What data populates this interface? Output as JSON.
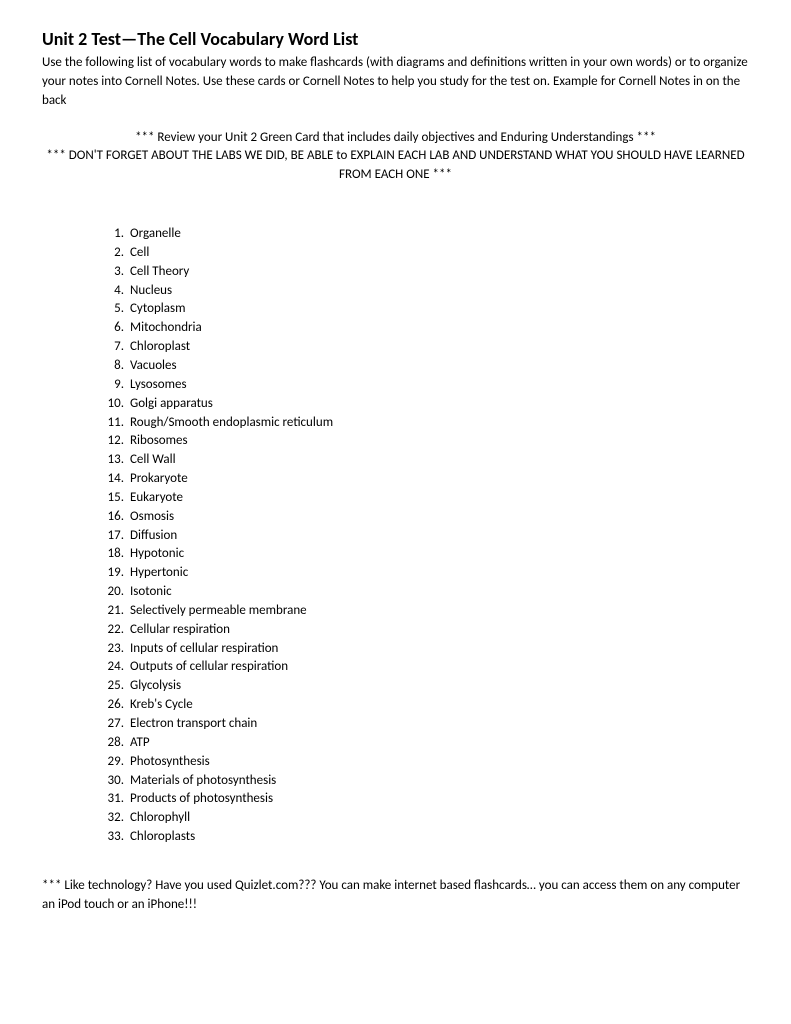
{
  "title": "Unit 2 Test—The Cell Vocabulary Word List",
  "intro": "Use the following list of vocabulary words to make flashcards (with diagrams and definitions written in your own words) or to organize your notes into Cornell Notes.  Use these cards or Cornell Notes to help you study for the test on. Example for Cornell Notes in on the back",
  "note1": "*** Review your Unit 2 Green Card that includes daily objectives and Enduring Understandings ***",
  "note2": "*** DON'T FORGET ABOUT THE LABS WE DID, BE ABLE to EXPLAIN EACH LAB AND UNDERSTAND WHAT YOU SHOULD HAVE LEARNED FROM EACH ONE ***",
  "vocab": [
    "Organelle",
    "Cell",
    "Cell Theory",
    "Nucleus",
    "Cytoplasm",
    "Mitochondria",
    "Chloroplast",
    "Vacuoles",
    "Lysosomes",
    "Golgi apparatus",
    "Rough/Smooth endoplasmic reticulum",
    "Ribosomes",
    "Cell Wall",
    "Prokaryote",
    "Eukaryote",
    "Osmosis",
    "Diffusion",
    "Hypotonic",
    "Hypertonic",
    "Isotonic",
    "Selectively permeable membrane",
    "Cellular respiration",
    "Inputs of cellular respiration",
    "Outputs of cellular respiration",
    "Glycolysis",
    "Kreb's Cycle",
    "Electron transport chain",
    "ATP",
    "Photosynthesis",
    "Materials of photosynthesis",
    "Products of photosynthesis",
    "Chlorophyll",
    "Chloroplasts"
  ],
  "footer": "*** Like technology? Have you used Quizlet.com??? You can make internet based flashcards… you can access them on any computer an iPod touch or an iPhone!!!"
}
